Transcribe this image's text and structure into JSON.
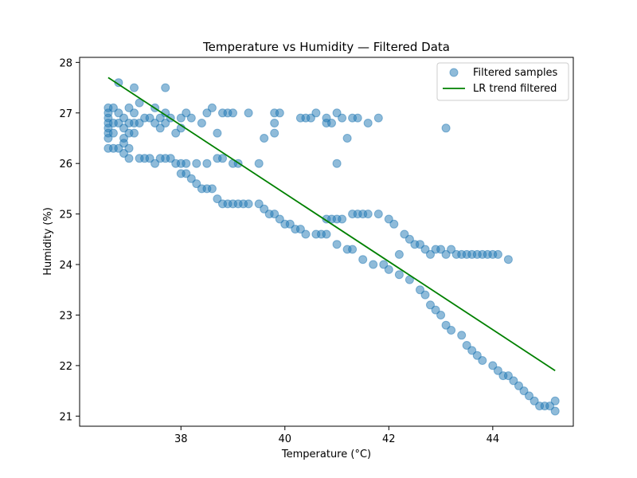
{
  "chart_data": {
    "type": "scatter",
    "title": "Temperature vs Humidity — Filtered Data",
    "xlabel": "Temperature (°C)",
    "ylabel": "Humidity (%)",
    "xlim": [
      36.05,
      45.55
    ],
    "ylim": [
      20.8,
      28.1
    ],
    "xticks": [
      38,
      40,
      42,
      44
    ],
    "yticks": [
      21,
      22,
      23,
      24,
      25,
      26,
      27,
      28
    ],
    "grid": false,
    "legend_position": "top-right",
    "colors": {
      "scatter": "#1f77b4",
      "trend": "#008000"
    },
    "series": [
      {
        "name": "Filtered samples",
        "type": "scatter",
        "points": [
          [
            36.6,
            27.1
          ],
          [
            36.6,
            27.0
          ],
          [
            36.6,
            26.9
          ],
          [
            36.6,
            26.8
          ],
          [
            36.6,
            26.7
          ],
          [
            36.6,
            26.6
          ],
          [
            36.6,
            26.5
          ],
          [
            36.6,
            26.3
          ],
          [
            36.7,
            27.1
          ],
          [
            36.7,
            26.8
          ],
          [
            36.7,
            26.6
          ],
          [
            36.7,
            26.3
          ],
          [
            36.8,
            27.6
          ],
          [
            36.8,
            27.0
          ],
          [
            36.8,
            26.8
          ],
          [
            36.8,
            26.3
          ],
          [
            36.9,
            26.9
          ],
          [
            36.9,
            26.7
          ],
          [
            36.9,
            26.5
          ],
          [
            36.9,
            26.4
          ],
          [
            36.9,
            26.2
          ],
          [
            37.0,
            27.1
          ],
          [
            37.0,
            26.8
          ],
          [
            37.0,
            26.6
          ],
          [
            37.0,
            26.3
          ],
          [
            37.0,
            26.1
          ],
          [
            37.1,
            27.5
          ],
          [
            37.1,
            27.0
          ],
          [
            37.1,
            26.8
          ],
          [
            37.1,
            26.6
          ],
          [
            37.2,
            27.2
          ],
          [
            37.2,
            26.8
          ],
          [
            37.2,
            26.1
          ],
          [
            37.3,
            26.9
          ],
          [
            37.3,
            26.1
          ],
          [
            37.4,
            26.9
          ],
          [
            37.4,
            26.1
          ],
          [
            37.5,
            27.1
          ],
          [
            37.5,
            26.8
          ],
          [
            37.5,
            26.0
          ],
          [
            37.6,
            26.9
          ],
          [
            37.6,
            26.7
          ],
          [
            37.6,
            26.1
          ],
          [
            37.7,
            27.5
          ],
          [
            37.7,
            27.0
          ],
          [
            37.7,
            26.8
          ],
          [
            37.7,
            26.1
          ],
          [
            37.8,
            26.9
          ],
          [
            37.8,
            26.1
          ],
          [
            37.9,
            26.6
          ],
          [
            37.9,
            26.0
          ],
          [
            38.0,
            26.9
          ],
          [
            38.0,
            26.7
          ],
          [
            38.0,
            26.0
          ],
          [
            38.0,
            25.8
          ],
          [
            38.1,
            27.0
          ],
          [
            38.1,
            26.0
          ],
          [
            38.1,
            25.8
          ],
          [
            38.2,
            26.9
          ],
          [
            38.2,
            25.7
          ],
          [
            38.3,
            26.0
          ],
          [
            38.3,
            25.6
          ],
          [
            38.4,
            26.8
          ],
          [
            38.4,
            25.5
          ],
          [
            38.5,
            27.0
          ],
          [
            38.5,
            26.0
          ],
          [
            38.5,
            25.5
          ],
          [
            38.6,
            27.1
          ],
          [
            38.6,
            25.5
          ],
          [
            38.7,
            26.6
          ],
          [
            38.7,
            26.1
          ],
          [
            38.7,
            25.3
          ],
          [
            38.8,
            27.0
          ],
          [
            38.8,
            26.1
          ],
          [
            38.8,
            25.2
          ],
          [
            38.9,
            27.0
          ],
          [
            38.9,
            25.2
          ],
          [
            39.0,
            27.0
          ],
          [
            39.0,
            26.0
          ],
          [
            39.0,
            25.2
          ],
          [
            39.1,
            26.0
          ],
          [
            39.1,
            25.2
          ],
          [
            39.2,
            25.2
          ],
          [
            39.3,
            27.0
          ],
          [
            39.3,
            25.2
          ],
          [
            39.5,
            26.0
          ],
          [
            39.5,
            25.2
          ],
          [
            39.6,
            26.5
          ],
          [
            39.6,
            25.1
          ],
          [
            39.7,
            25.0
          ],
          [
            39.8,
            27.0
          ],
          [
            39.8,
            26.8
          ],
          [
            39.8,
            26.6
          ],
          [
            39.8,
            25.0
          ],
          [
            39.9,
            27.0
          ],
          [
            39.9,
            24.9
          ],
          [
            40.0,
            24.8
          ],
          [
            40.1,
            24.8
          ],
          [
            40.2,
            24.7
          ],
          [
            40.3,
            26.9
          ],
          [
            40.3,
            24.7
          ],
          [
            40.4,
            26.9
          ],
          [
            40.4,
            24.6
          ],
          [
            40.5,
            26.9
          ],
          [
            40.6,
            27.0
          ],
          [
            40.6,
            24.6
          ],
          [
            40.7,
            24.6
          ],
          [
            40.8,
            26.9
          ],
          [
            40.8,
            26.8
          ],
          [
            40.8,
            24.9
          ],
          [
            40.8,
            24.6
          ],
          [
            40.9,
            26.8
          ],
          [
            40.9,
            24.9
          ],
          [
            41.0,
            27.0
          ],
          [
            41.0,
            26.0
          ],
          [
            41.0,
            24.9
          ],
          [
            41.0,
            24.4
          ],
          [
            41.1,
            26.9
          ],
          [
            41.1,
            24.9
          ],
          [
            41.2,
            24.3
          ],
          [
            41.2,
            26.5
          ],
          [
            41.3,
            26.9
          ],
          [
            41.3,
            25.0
          ],
          [
            41.3,
            24.3
          ],
          [
            41.4,
            26.9
          ],
          [
            41.4,
            25.0
          ],
          [
            41.5,
            25.0
          ],
          [
            41.5,
            24.1
          ],
          [
            41.6,
            26.8
          ],
          [
            41.6,
            25.0
          ],
          [
            41.7,
            24.0
          ],
          [
            41.8,
            26.9
          ],
          [
            41.8,
            25.0
          ],
          [
            41.9,
            24.0
          ],
          [
            42.0,
            24.9
          ],
          [
            42.0,
            23.9
          ],
          [
            42.1,
            24.8
          ],
          [
            42.2,
            24.2
          ],
          [
            42.2,
            23.8
          ],
          [
            42.3,
            24.6
          ],
          [
            42.4,
            24.5
          ],
          [
            42.4,
            23.7
          ],
          [
            42.5,
            24.4
          ],
          [
            42.6,
            24.4
          ],
          [
            42.6,
            23.5
          ],
          [
            42.7,
            24.3
          ],
          [
            42.7,
            23.4
          ],
          [
            42.8,
            24.2
          ],
          [
            42.8,
            23.2
          ],
          [
            42.9,
            24.3
          ],
          [
            42.9,
            23.1
          ],
          [
            43.0,
            24.3
          ],
          [
            43.0,
            23.0
          ],
          [
            43.1,
            26.7
          ],
          [
            43.1,
            24.2
          ],
          [
            43.1,
            22.8
          ],
          [
            43.2,
            24.3
          ],
          [
            43.2,
            22.7
          ],
          [
            43.3,
            24.2
          ],
          [
            43.4,
            24.2
          ],
          [
            43.4,
            22.6
          ],
          [
            43.5,
            24.2
          ],
          [
            43.5,
            22.4
          ],
          [
            43.6,
            24.2
          ],
          [
            43.6,
            22.3
          ],
          [
            43.7,
            24.2
          ],
          [
            43.7,
            22.2
          ],
          [
            43.8,
            24.2
          ],
          [
            43.8,
            22.1
          ],
          [
            43.9,
            24.2
          ],
          [
            44.0,
            24.2
          ],
          [
            44.0,
            22.0
          ],
          [
            44.1,
            24.2
          ],
          [
            44.1,
            21.9
          ],
          [
            44.2,
            21.8
          ],
          [
            44.3,
            24.1
          ],
          [
            44.3,
            21.8
          ],
          [
            44.4,
            21.7
          ],
          [
            44.5,
            21.6
          ],
          [
            44.6,
            21.5
          ],
          [
            44.7,
            21.4
          ],
          [
            44.8,
            21.3
          ],
          [
            44.9,
            21.2
          ],
          [
            45.0,
            21.2
          ],
          [
            45.1,
            21.2
          ],
          [
            45.2,
            21.1
          ],
          [
            45.2,
            21.3
          ]
        ]
      },
      {
        "name": "LR trend filtered",
        "type": "line",
        "x": [
          36.6,
          45.2
        ],
        "y": [
          27.7,
          21.9
        ]
      }
    ]
  }
}
